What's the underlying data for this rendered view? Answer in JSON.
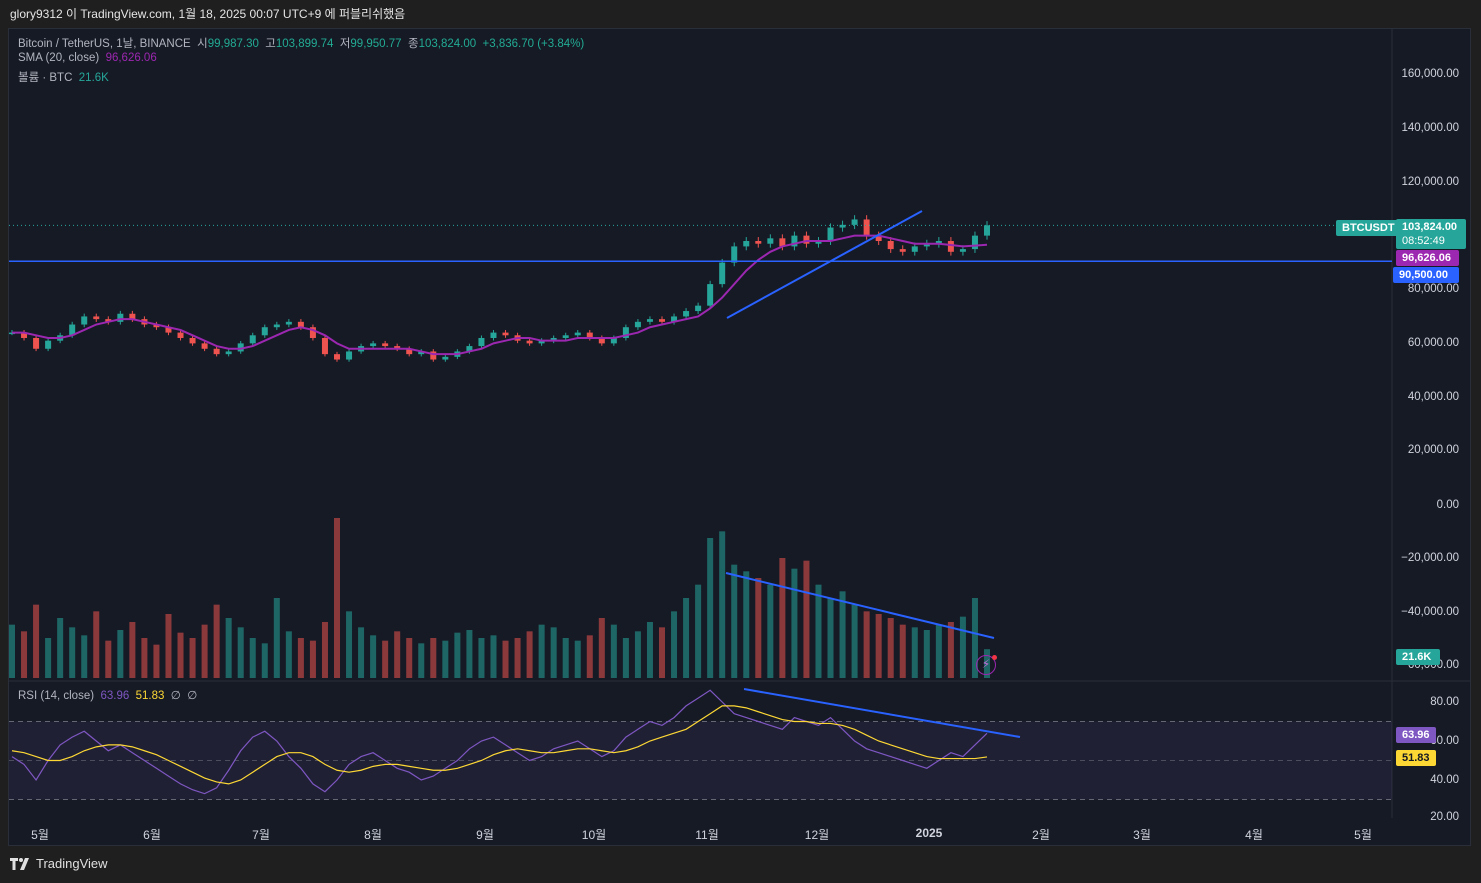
{
  "header": {
    "attribution": "glory9312 이 TradingView.com, 1월 18, 2025 00:07 UTC+9 에 퍼블리쉬했음"
  },
  "legend": {
    "symbol": "Bitcoin / TetherUS, 1날, BINANCE",
    "open_label": "시",
    "open": "99,987.30",
    "high_label": "고",
    "high": "103,899.74",
    "low_label": "저",
    "low": "99,950.77",
    "close_label": "종",
    "close": "103,824.00",
    "change": "+3,836.70 (+3.84%)",
    "sma_label": "SMA (20, close)",
    "sma_value": "96,626.06",
    "volume_label": "볼륨 · BTC",
    "volume_value": "21.6K"
  },
  "rsi_legend": {
    "label": "RSI (14, close)",
    "rsi": "63.96",
    "rsi_ma": "51.83",
    "null1": "∅",
    "null2": "∅"
  },
  "price_axis": [
    "160,000.00",
    "140,000.00",
    "120,000.00",
    "80,000.00",
    "60,000.00",
    "40,000.00",
    "20,000.00",
    "0.00",
    "−20,000.00",
    "−40,000.00",
    "−60,000.00"
  ],
  "rsi_axis": [
    "80.00",
    "60.00",
    "40.00",
    "20.00"
  ],
  "tags": {
    "symbol": "BTCUSDT",
    "price": "103,824.00",
    "countdown": "08:52:49",
    "sma": "96,626.06",
    "hline": "90,500.00",
    "volume": "21.6K",
    "rsi": "63.96",
    "rsi_ma": "51.83"
  },
  "time_axis": [
    "5월",
    "6월",
    "7월",
    "8월",
    "9월",
    "10월",
    "11월",
    "12월",
    "2025",
    "2월",
    "3월",
    "4월",
    "5월"
  ],
  "footer": {
    "brand": "TradingView"
  },
  "colors": {
    "up": "#26a69a",
    "down": "#ef5350",
    "sma": "#9c27b0",
    "trendline": "#2962ff",
    "rsi": "#7e57c2",
    "rsi_ma": "#fdd835"
  },
  "chart_data": {
    "type": "candlestick",
    "symbol": "BTCUSDT",
    "interval": "1D",
    "price_ylim": [
      -60000,
      160000
    ],
    "horizontal_line": 90500,
    "months": [
      "5월",
      "6월",
      "7월",
      "8월",
      "9월",
      "10월",
      "11월",
      "12월",
      "2025"
    ],
    "close_series": [
      64000,
      62000,
      58000,
      61000,
      63000,
      67000,
      70000,
      69000,
      68000,
      71000,
      69000,
      67000,
      66000,
      64000,
      62000,
      60000,
      58000,
      56000,
      57000,
      60000,
      63000,
      66000,
      67000,
      68000,
      66000,
      62000,
      56000,
      54000,
      57000,
      59000,
      60000,
      59000,
      58000,
      56000,
      57000,
      54000,
      55000,
      57000,
      59000,
      62000,
      64000,
      63000,
      61000,
      60000,
      61000,
      62000,
      63000,
      64000,
      62000,
      60000,
      62000,
      66000,
      68000,
      69000,
      68000,
      70000,
      72000,
      74000,
      82000,
      90000,
      96000,
      98000,
      97000,
      99000,
      96000,
      100000,
      97000,
      98000,
      103000,
      104000,
      106000,
      100000,
      98000,
      95000,
      94000,
      96000,
      97000,
      98000,
      94000,
      95000,
      100000,
      103824
    ],
    "sma_series": [
      64000,
      64000,
      63000,
      62000,
      62000,
      63000,
      65000,
      67000,
      68000,
      69000,
      69000,
      68000,
      67000,
      66000,
      65000,
      63000,
      61000,
      59000,
      58000,
      58000,
      59000,
      61000,
      63000,
      65000,
      66000,
      65000,
      63000,
      60000,
      58000,
      58000,
      58000,
      58000,
      58000,
      58000,
      57000,
      56000,
      56000,
      56000,
      57000,
      58000,
      60000,
      61000,
      62000,
      62000,
      61000,
      61000,
      61000,
      62000,
      62000,
      62000,
      62000,
      63000,
      64000,
      66000,
      67000,
      68000,
      69000,
      70000,
      73000,
      77000,
      82000,
      87000,
      91000,
      94000,
      96000,
      97000,
      98000,
      98000,
      98000,
      99000,
      100000,
      100000,
      100000,
      99000,
      98000,
      97000,
      97000,
      97000,
      96500,
      96000,
      96300,
      96626
    ],
    "volume_series_btc": [
      40,
      35,
      55,
      30,
      45,
      38,
      32,
      50,
      28,
      36,
      42,
      30,
      25,
      48,
      34,
      30,
      40,
      55,
      45,
      38,
      30,
      26,
      60,
      35,
      30,
      28,
      42,
      120,
      50,
      38,
      32,
      28,
      35,
      30,
      26,
      30,
      28,
      34,
      36,
      30,
      32,
      28,
      30,
      35,
      40,
      38,
      30,
      28,
      32,
      45,
      40,
      30,
      35,
      42,
      38,
      50,
      60,
      70,
      105,
      110,
      85,
      80,
      75,
      70,
      90,
      82,
      88,
      70,
      60,
      65,
      55,
      50,
      48,
      45,
      40,
      38,
      36,
      40,
      42,
      46,
      60,
      21.6
    ],
    "rsi_series": [
      52,
      48,
      40,
      50,
      58,
      62,
      65,
      60,
      55,
      58,
      54,
      50,
      46,
      42,
      38,
      35,
      33,
      36,
      45,
      55,
      62,
      65,
      60,
      52,
      46,
      38,
      34,
      40,
      48,
      52,
      54,
      50,
      46,
      44,
      40,
      42,
      46,
      50,
      56,
      60,
      62,
      58,
      54,
      50,
      52,
      56,
      58,
      60,
      56,
      52,
      55,
      62,
      66,
      70,
      68,
      72,
      78,
      82,
      86,
      80,
      74,
      72,
      70,
      68,
      66,
      72,
      70,
      68,
      72,
      66,
      60,
      56,
      54,
      52,
      50,
      48,
      46,
      50,
      54,
      52,
      58,
      63.96
    ],
    "rsi_ma_series": [
      55,
      54,
      52,
      50,
      50,
      52,
      55,
      57,
      58,
      58,
      57,
      55,
      53,
      50,
      47,
      44,
      41,
      39,
      38,
      40,
      44,
      48,
      52,
      54,
      54,
      52,
      48,
      45,
      44,
      45,
      47,
      48,
      48,
      47,
      46,
      45,
      45,
      46,
      48,
      50,
      53,
      55,
      56,
      55,
      54,
      54,
      55,
      56,
      56,
      55,
      54,
      55,
      57,
      60,
      62,
      64,
      66,
      70,
      74,
      78,
      78,
      77,
      75,
      73,
      71,
      70,
      70,
      69,
      69,
      68,
      66,
      63,
      60,
      58,
      56,
      54,
      52,
      51,
      51,
      51,
      51,
      51.83
    ],
    "rsi_bands": [
      70,
      50,
      30
    ]
  }
}
